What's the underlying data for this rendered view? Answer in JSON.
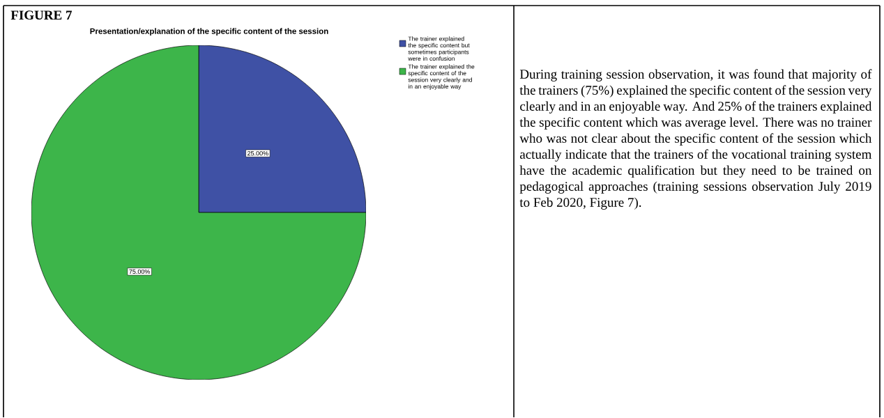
{
  "chart_data": {
    "type": "pie",
    "title": "FIGURE 7",
    "subtitle": "Presentation/explanation of the specific content of the session",
    "categories": [
      "The trainer explained the specific content but sometimes participants were in confusion",
      "The trainer explained the specific content of the session very clearly and in an enjoyable way"
    ],
    "values": [
      25,
      75
    ],
    "colors": [
      "#3f51a5",
      "#3db54a"
    ],
    "value_labels": [
      "25.00%",
      "75.00%"
    ],
    "legend": "top right",
    "annotations": [
      "During training session observation, it was found that majority of the trainers (75%) explained the specific content of the session very clearly and in an enjoyable way. And 25% of the trainers explained the specific content which was average level. There was no trainer who was not clear about the specific content of the session which actually indicate that the trainers of the vocational training system have the academic qualification but they need to be trained on pedagogical approaches (training sessions observation July 2019 to Feb 2020, Figure 7)."
    ]
  }
}
